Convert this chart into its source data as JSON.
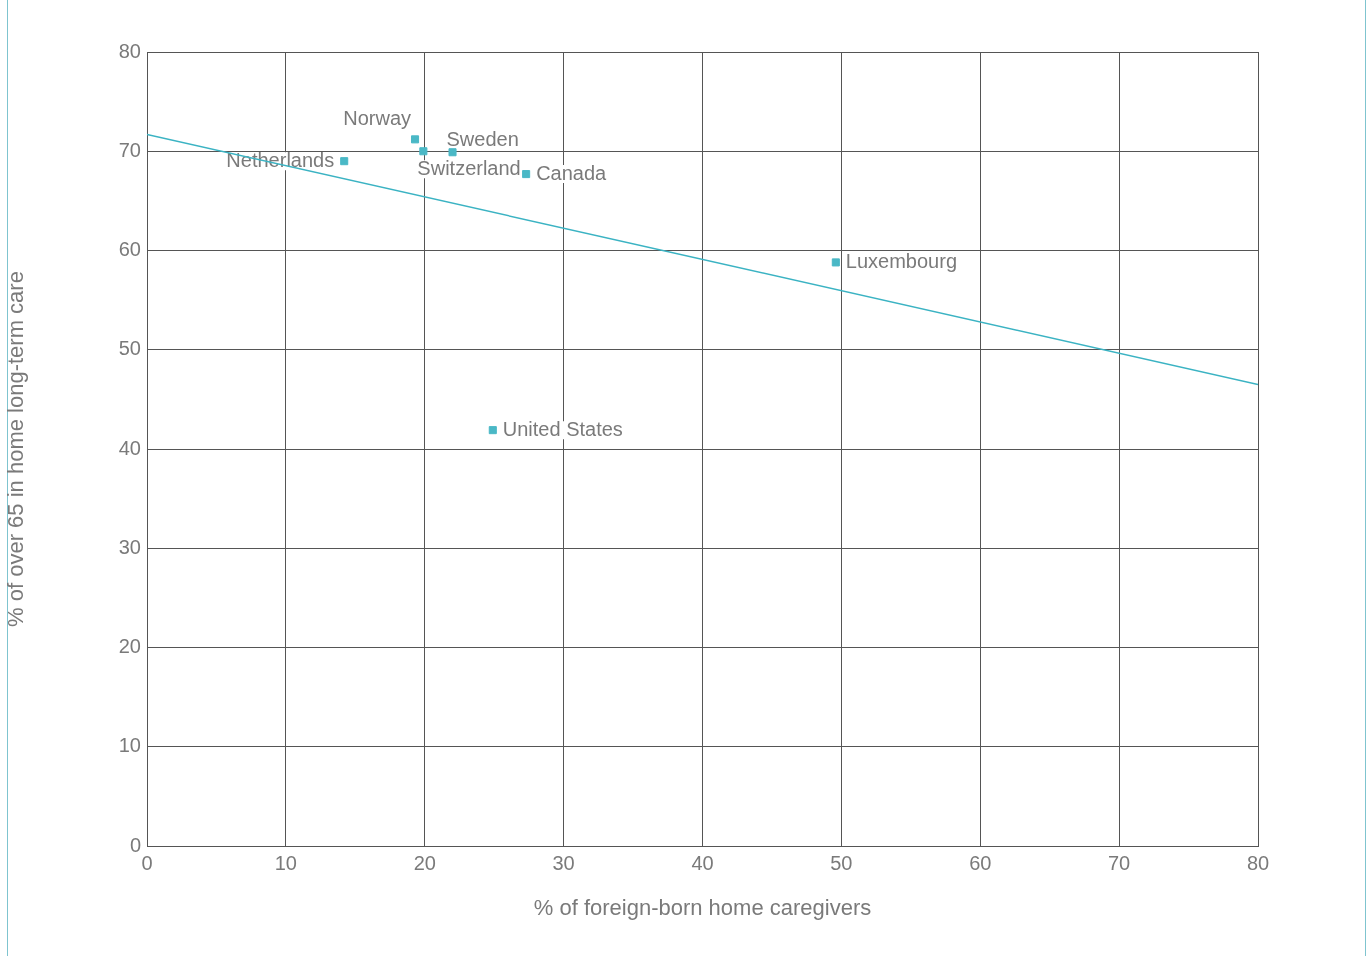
{
  "chart_data": {
    "type": "scatter",
    "xlabel": "% of foreign-born home caregivers",
    "ylabel": "% of over 65 in home long-term care",
    "x": [
      19.3,
      19.9,
      22.0,
      14.2,
      27.3,
      49.6,
      24.9
    ],
    "series": [
      {
        "type": "scatter",
        "color": "#4ab8c6",
        "marker": "square",
        "values": [
          71.2,
          70.0,
          69.9,
          69.0,
          67.7,
          58.8,
          41.9
        ]
      },
      {
        "type": "line",
        "color": "#3bb3c3",
        "marker": "none",
        "x": [
          0,
          80
        ],
        "values": [
          71.7,
          46.5
        ]
      }
    ],
    "xlim": [
      0,
      80
    ],
    "xticks": [
      0,
      10,
      20,
      30,
      40,
      50,
      60,
      70,
      80
    ],
    "ylim": [
      0,
      80
    ],
    "yticks": [
      0,
      10,
      20,
      30,
      40,
      50,
      60,
      70,
      80
    ],
    "grid": true,
    "legend": false,
    "annotations": [
      {
        "text": "Norway",
        "x": 19.3,
        "y": 71.2
      },
      {
        "text": "Switzerland",
        "x": 19.9,
        "y": 70.0
      },
      {
        "text": "Sweden",
        "x": 22.0,
        "y": 69.9
      },
      {
        "text": "Netherlands",
        "x": 14.2,
        "y": 69.0
      },
      {
        "text": "Canada",
        "x": 27.3,
        "y": 67.7
      },
      {
        "text": "Luxembourg",
        "x": 49.6,
        "y": 58.8
      },
      {
        "text": "United States",
        "x": 24.9,
        "y": 41.9
      }
    ]
  }
}
